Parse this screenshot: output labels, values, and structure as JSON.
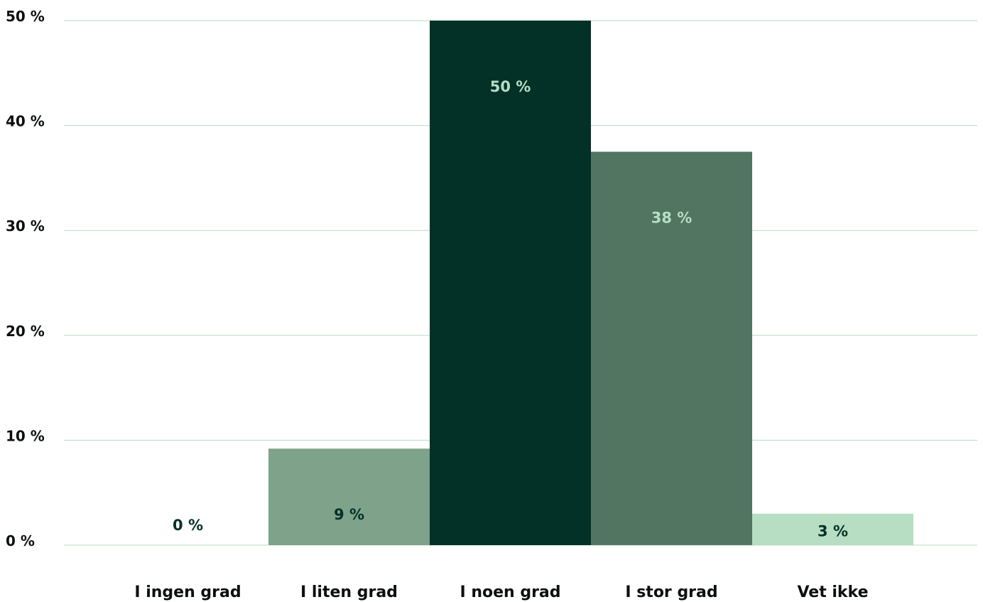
{
  "chart_data": {
    "type": "bar",
    "title": "",
    "xlabel": "",
    "ylabel": "",
    "categories": [
      "I ingen grad",
      "I liten grad",
      "I noen grad",
      "I stor grad",
      "Vet ikke"
    ],
    "values": [
      0,
      9.2,
      50,
      37.5,
      3
    ],
    "data_labels": [
      "0 %",
      "9 %",
      "50 %",
      "38 %",
      "3 %"
    ],
    "ylim": [
      0,
      50
    ],
    "yticks": [
      0,
      10,
      20,
      30,
      40,
      50
    ],
    "ytick_labels": [
      "0 %",
      "10 %",
      "20 %",
      "30 %",
      "40 %",
      "50 %"
    ],
    "grid": true,
    "legend": "none",
    "colors": {
      "bars": [
        "#7fa28a",
        "#7fa28a",
        "#033127",
        "#517561",
        "#b7dec3"
      ],
      "data_labels": [
        "#033127",
        "#033127",
        "#b7dec3",
        "#b7dec3",
        "#033127"
      ],
      "grid": "#b6dcbe",
      "text": "#0b0f0d"
    }
  }
}
